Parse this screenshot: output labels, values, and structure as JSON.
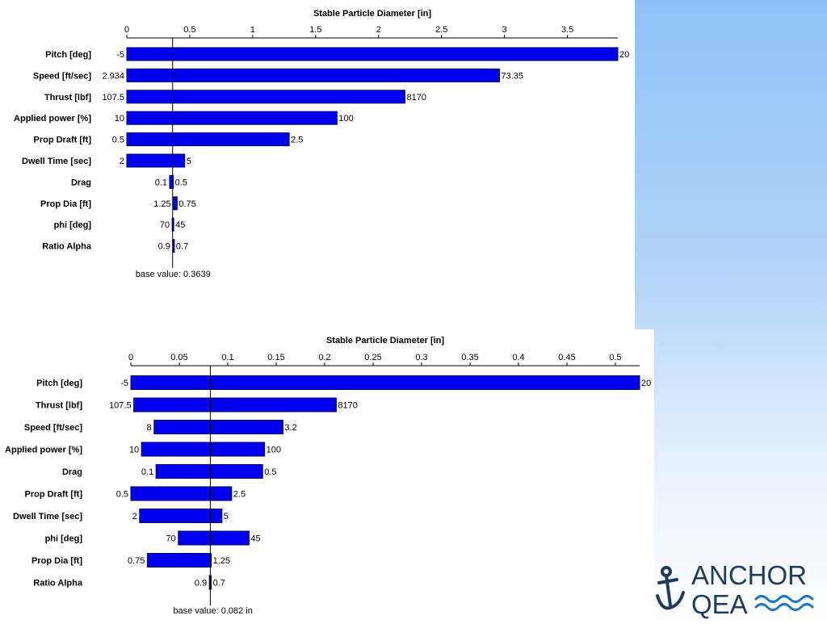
{
  "colors": {
    "bar_fill": "#0000ee",
    "bar_stroke": "#000066",
    "axis": "#000000",
    "baseline": "#000000",
    "logo_navy": "#1e3d5c",
    "logo_accent": "#1a78c2"
  },
  "logo": {
    "line1": "ANCHOR",
    "line2": "QEA",
    "icon": "anchor-icon"
  },
  "chart_data": [
    {
      "type": "bar",
      "orientation": "horizontal",
      "title": "Stable Particle Diameter [in]",
      "base_value_label": "base value: 0.3639",
      "base_value": 0.3639,
      "xlim": [
        0,
        3.9
      ],
      "ticks": [
        0,
        0.5,
        1,
        1.5,
        2,
        2.5,
        3,
        3.5
      ],
      "tick_labels": [
        "0",
        "0.5",
        "1",
        "1.5",
        "2",
        "2.5",
        "3",
        "3.5"
      ],
      "categories": [
        "Pitch [deg]",
        "Speed [ft/sec]",
        "Thrust [lbf]",
        "Applied power [%]",
        "Prop Draft [ft]",
        "Dwell Time [sec]",
        "Drag",
        "Prop Dia [ft]",
        "phi [deg]",
        "Ratio Alpha"
      ],
      "low_values": [
        0.0,
        0.0,
        0.0,
        0.0,
        0.0,
        0.0,
        0.34,
        0.37,
        0.36,
        0.365
      ],
      "high_values": [
        3.9,
        2.96,
        2.21,
        1.67,
        1.29,
        0.46,
        0.37,
        0.4,
        0.37,
        0.366
      ],
      "low_labels": [
        "-5",
        "2.934",
        "107.5",
        "10",
        "0.5",
        "2",
        "0.1",
        "1.25",
        "70",
        "0.9"
      ],
      "high_labels": [
        "20",
        "73.35",
        "8170",
        "100",
        "2.5",
        "5",
        "0.5",
        "0.75",
        "45",
        "0.7"
      ]
    },
    {
      "type": "bar",
      "orientation": "horizontal",
      "title": "Stable Particle Diameter [in]",
      "base_value_label": "base value: 0.082 in",
      "base_value": 0.082,
      "xlim": [
        0,
        0.525
      ],
      "ticks": [
        0,
        0.05,
        0.1,
        0.15,
        0.2,
        0.25,
        0.3,
        0.35,
        0.4,
        0.45,
        0.5
      ],
      "tick_labels": [
        "0",
        "0.05",
        "0.1",
        "0.15",
        "0.2",
        "0.25",
        "0.3",
        "0.35",
        "0.4",
        "0.45",
        "0.5"
      ],
      "categories": [
        "Pitch [deg]",
        "Thrust [lbf]",
        "Speed [ft/sec]",
        "Applied power [%]",
        "Drag",
        "Prop Draft [ft]",
        "Dwell Time [sec]",
        "phi [deg]",
        "Prop Dia [ft]",
        "Ratio Alpha"
      ],
      "low_values": [
        0.0,
        0.003,
        0.024,
        0.011,
        0.026,
        0.0,
        0.009,
        0.049,
        0.017,
        0.081
      ],
      "high_values": [
        0.525,
        0.212,
        0.157,
        0.138,
        0.136,
        0.104,
        0.094,
        0.122,
        0.083,
        0.083
      ],
      "low_labels": [
        "-5",
        "107.5",
        "8",
        "10",
        "0.1",
        "0.5",
        "2",
        "70",
        "0.75",
        "0.9"
      ],
      "high_labels": [
        "20",
        "8170",
        "3.2",
        "100",
        "0.5",
        "2.5",
        "5",
        "45",
        "1.25",
        "0.7"
      ]
    }
  ]
}
